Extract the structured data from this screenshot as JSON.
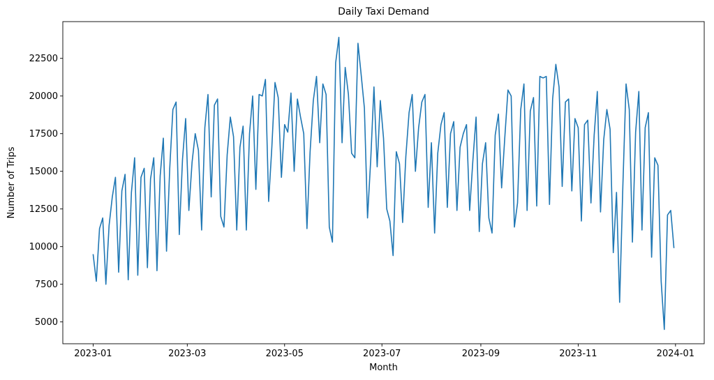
{
  "chart_data": {
    "type": "line",
    "title": "Daily Taxi Demand",
    "xlabel": "Month",
    "ylabel": "Number of Trips",
    "xlim": [
      "2022-12-13",
      "2024-01-19"
    ],
    "ylim": [
      3550,
      24940
    ],
    "grid": false,
    "line_color": "#1f77b4",
    "x_ticks": [
      "2023-01",
      "2023-03",
      "2023-05",
      "2023-07",
      "2023-09",
      "2023-11",
      "2024-01"
    ],
    "y_ticks": [
      5000,
      7500,
      10000,
      12500,
      15000,
      17500,
      20000,
      22500
    ],
    "x": [
      "2023-01-01",
      "2023-01-03",
      "2023-01-05",
      "2023-01-07",
      "2023-01-09",
      "2023-01-11",
      "2023-01-13",
      "2023-01-15",
      "2023-01-17",
      "2023-01-19",
      "2023-01-21",
      "2023-01-23",
      "2023-01-25",
      "2023-01-27",
      "2023-01-29",
      "2023-01-31",
      "2023-02-02",
      "2023-02-04",
      "2023-02-06",
      "2023-02-08",
      "2023-02-10",
      "2023-02-12",
      "2023-02-14",
      "2023-02-16",
      "2023-02-18",
      "2023-02-20",
      "2023-02-22",
      "2023-02-24",
      "2023-02-26",
      "2023-02-28",
      "2023-03-02",
      "2023-03-04",
      "2023-03-06",
      "2023-03-08",
      "2023-03-10",
      "2023-03-12",
      "2023-03-14",
      "2023-03-16",
      "2023-03-18",
      "2023-03-20",
      "2023-03-22",
      "2023-03-24",
      "2023-03-26",
      "2023-03-28",
      "2023-03-30",
      "2023-04-01",
      "2023-04-03",
      "2023-04-05",
      "2023-04-07",
      "2023-04-09",
      "2023-04-11",
      "2023-04-13",
      "2023-04-15",
      "2023-04-17",
      "2023-04-19",
      "2023-04-21",
      "2023-04-23",
      "2023-04-25",
      "2023-04-27",
      "2023-04-29",
      "2023-05-01",
      "2023-05-03",
      "2023-05-05",
      "2023-05-07",
      "2023-05-09",
      "2023-05-11",
      "2023-05-13",
      "2023-05-15",
      "2023-05-17",
      "2023-05-19",
      "2023-05-21",
      "2023-05-23",
      "2023-05-25",
      "2023-05-27",
      "2023-05-29",
      "2023-05-31",
      "2023-06-02",
      "2023-06-04",
      "2023-06-06",
      "2023-06-08",
      "2023-06-10",
      "2023-06-12",
      "2023-06-14",
      "2023-06-16",
      "2023-06-18",
      "2023-06-20",
      "2023-06-22",
      "2023-06-24",
      "2023-06-26",
      "2023-06-28",
      "2023-06-30",
      "2023-07-02",
      "2023-07-04",
      "2023-07-06",
      "2023-07-08",
      "2023-07-10",
      "2023-07-12",
      "2023-07-14",
      "2023-07-16",
      "2023-07-18",
      "2023-07-20",
      "2023-07-22",
      "2023-07-24",
      "2023-07-26",
      "2023-07-28",
      "2023-07-30",
      "2023-08-01",
      "2023-08-03",
      "2023-08-05",
      "2023-08-07",
      "2023-08-09",
      "2023-08-11",
      "2023-08-13",
      "2023-08-15",
      "2023-08-17",
      "2023-08-19",
      "2023-08-21",
      "2023-08-23",
      "2023-08-25",
      "2023-08-27",
      "2023-08-29",
      "2023-08-31",
      "2023-09-02",
      "2023-09-04",
      "2023-09-06",
      "2023-09-08",
      "2023-09-10",
      "2023-09-12",
      "2023-09-14",
      "2023-09-16",
      "2023-09-18",
      "2023-09-20",
      "2023-09-22",
      "2023-09-24",
      "2023-09-26",
      "2023-09-28",
      "2023-09-30",
      "2023-10-02",
      "2023-10-04",
      "2023-10-06",
      "2023-10-08",
      "2023-10-10",
      "2023-10-12",
      "2023-10-14",
      "2023-10-16",
      "2023-10-18",
      "2023-10-20",
      "2023-10-22",
      "2023-10-24",
      "2023-10-26",
      "2023-10-28",
      "2023-10-30",
      "2023-11-01",
      "2023-11-03",
      "2023-11-05",
      "2023-11-07",
      "2023-11-09",
      "2023-11-11",
      "2023-11-13",
      "2023-11-15",
      "2023-11-17",
      "2023-11-19",
      "2023-11-21",
      "2023-11-23",
      "2023-11-25",
      "2023-11-27",
      "2023-11-29",
      "2023-12-01",
      "2023-12-03",
      "2023-12-05",
      "2023-12-07",
      "2023-12-09",
      "2023-12-11",
      "2023-12-13",
      "2023-12-15",
      "2023-12-17",
      "2023-12-19",
      "2023-12-21",
      "2023-12-23",
      "2023-12-25",
      "2023-12-27",
      "2023-12-29",
      "2023-12-31"
    ],
    "series": [
      {
        "values": [
          9500,
          7700,
          11200,
          11900,
          7500,
          11400,
          13300,
          14600,
          8300,
          13700,
          14800,
          7800,
          13600,
          15900,
          8100,
          14600,
          15200,
          8600,
          14500,
          15900,
          8400,
          14700,
          17200,
          9700,
          15200,
          19100,
          19600,
          10800,
          15800,
          18500,
          12400,
          15600,
          17500,
          16400,
          11100,
          17900,
          20100,
          13300,
          19400,
          19800,
          12000,
          11300,
          16100,
          18600,
          17300,
          11100,
          16600,
          18000,
          11100,
          17500,
          20000,
          13800,
          20100,
          20000,
          21100,
          13000,
          16600,
          20900,
          19900,
          14600,
          18100,
          17600,
          20200,
          15000,
          19800,
          18600,
          17500,
          11200,
          16300,
          19700,
          21300,
          16900,
          20800,
          20100,
          11300,
          10300,
          22200,
          23900,
          16900,
          21900,
          20100,
          16200,
          15900,
          23500,
          21400,
          19200,
          11900,
          15800,
          20600,
          15300,
          19700,
          17200,
          12500,
          11700,
          9400,
          16300,
          15500,
          11600,
          16000,
          18900,
          20100,
          15000,
          17900,
          19600,
          20100,
          12600,
          16900,
          10900,
          16200,
          18100,
          18900,
          12600,
          17500,
          18300,
          12400,
          16600,
          17500,
          18100,
          12400,
          15700,
          18600,
          11000,
          15500,
          16900,
          11900,
          10900,
          17400,
          18800,
          13900,
          17200,
          20400,
          20000,
          11300,
          12900,
          19100,
          20800,
          12400,
          19000,
          19900,
          12700,
          21300,
          21200,
          21300,
          12800,
          19800,
          22100,
          20600,
          14000,
          19600,
          19800,
          13700,
          18500,
          17900,
          11700,
          18100,
          18400,
          12900,
          17400,
          20300,
          12300,
          17100,
          19100,
          17800,
          9600,
          13600,
          6300,
          14000,
          20800,
          19100,
          10300,
          17600,
          20300,
          11100,
          17900,
          18900,
          9300,
          15900,
          15400,
          7700,
          4500,
          12100,
          12400,
          9900
        ]
      }
    ]
  }
}
